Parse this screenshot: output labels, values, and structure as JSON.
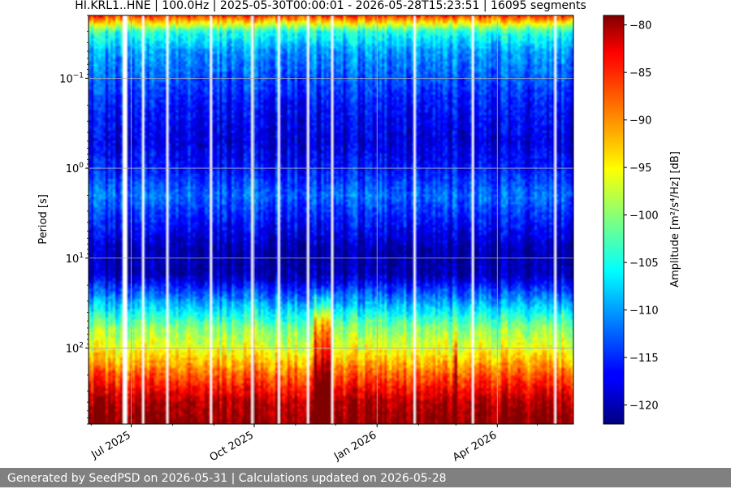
{
  "chart_data": {
    "type": "heatmap",
    "title": "HI.KRL1..HNE | 100.0Hz | 2025-05-30T00:00:01 - 2026-05-28T15:23:51 | 16095 segments",
    "ylabel": "Period [s]",
    "ylabel_html": "Period [s]",
    "y_scale": "log",
    "y_inverted": true,
    "ylim": [
      0.02,
      700
    ],
    "y_ticks": [
      {
        "value": 0.1,
        "base": "10",
        "exp": "−1"
      },
      {
        "value": 1,
        "base": "10",
        "exp": "0"
      },
      {
        "value": 10,
        "base": "10",
        "exp": "1"
      },
      {
        "value": 100,
        "base": "10",
        "exp": "2"
      }
    ],
    "xlim": [
      "2025-05-30",
      "2026-05-28"
    ],
    "x_ticks": [
      {
        "date": "2025-07-01",
        "label": "Jul 2025"
      },
      {
        "date": "2025-10-01",
        "label": "Oct 2025"
      },
      {
        "date": "2026-01-01",
        "label": "Jan 2026"
      },
      {
        "date": "2026-04-01",
        "label": "Apr 2026"
      }
    ],
    "grid": true,
    "colorbar": {
      "label": "Amplitude [m²/s⁴/Hz] [dB]",
      "colormap": "jet",
      "range": [
        -122,
        -79
      ],
      "ticks": [
        -80,
        -85,
        -90,
        -95,
        -100,
        -105,
        -110,
        -115,
        -120
      ],
      "tick_labels": [
        "−80",
        "−85",
        "−90",
        "−95",
        "−100",
        "−105",
        "−110",
        "−115",
        "−120"
      ]
    },
    "profile": [
      {
        "period": 0.02,
        "db": -86
      },
      {
        "period": 0.03,
        "db": -104
      },
      {
        "period": 0.05,
        "db": -110
      },
      {
        "period": 0.1,
        "db": -113
      },
      {
        "period": 0.2,
        "db": -116
      },
      {
        "period": 0.5,
        "db": -118
      },
      {
        "period": 1,
        "db": -116
      },
      {
        "period": 2,
        "db": -112
      },
      {
        "period": 4,
        "db": -116
      },
      {
        "period": 8,
        "db": -120
      },
      {
        "period": 15,
        "db": -120
      },
      {
        "period": 30,
        "db": -110
      },
      {
        "period": 60,
        "db": -100
      },
      {
        "period": 100,
        "db": -96
      },
      {
        "period": 200,
        "db": -88
      },
      {
        "period": 400,
        "db": -81
      },
      {
        "period": 700,
        "db": -79
      }
    ],
    "events": [
      {
        "start": "2025-11-15",
        "end": "2025-11-28",
        "db_offset": 10,
        "min_period": 20,
        "max_period": 700
      },
      {
        "start": "2026-02-28",
        "end": "2026-03-02",
        "db_offset": 8,
        "min_period": 50,
        "max_period": 700
      }
    ]
  },
  "footer": {
    "text": "Generated by SeedPSD on 2026-05-31 | Calculations updated on 2026-05-28"
  }
}
